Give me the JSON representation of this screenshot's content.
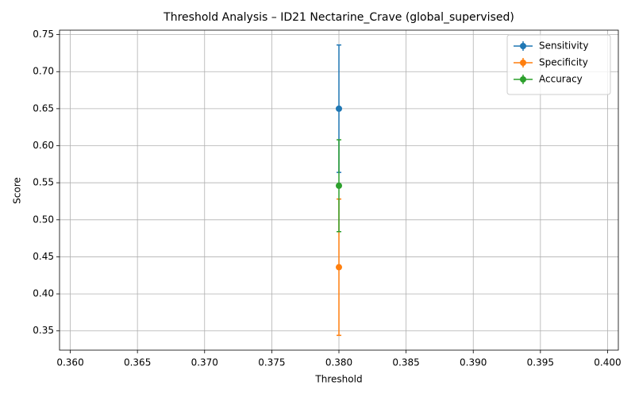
{
  "chart_data": {
    "type": "errorbar",
    "title": "Threshold Analysis – ID21 Nectarine_Crave (global_supervised)",
    "x_label": "Threshold",
    "y_label": "Score",
    "x": [
      0.38
    ],
    "series": [
      {
        "name": "Sensitivity",
        "color": "#1f77b4",
        "values": [
          0.65
        ],
        "errors": [
          0.086
        ]
      },
      {
        "name": "Specificity",
        "color": "#ff7f0e",
        "values": [
          0.436
        ],
        "errors": [
          0.092
        ]
      },
      {
        "name": "Accuracy",
        "color": "#2ca02c",
        "values": [
          0.546
        ],
        "errors": [
          0.062
        ]
      }
    ],
    "xlim": [
      0.3592,
      0.4008
    ],
    "ylim": [
      0.324,
      0.756
    ],
    "xticks": [
      {
        "value": 0.36,
        "label": "0.360"
      },
      0.365,
      {
        "value": 0.37,
        "label": "0.370"
      },
      0.375,
      {
        "value": 0.38,
        "label": "0.380"
      },
      0.385,
      {
        "value": 0.39,
        "label": "0.390"
      },
      0.395,
      {
        "value": 0.4,
        "label": "0.400"
      }
    ],
    "yticks": [
      0.35,
      {
        "value": 0.4,
        "label": "0.40"
      },
      0.45,
      {
        "value": 0.5,
        "label": "0.50"
      },
      0.55,
      {
        "value": 0.6,
        "label": "0.60"
      },
      0.65,
      {
        "value": 0.7,
        "label": "0.70"
      },
      0.75
    ],
    "grid": true,
    "legend": "upper right"
  }
}
